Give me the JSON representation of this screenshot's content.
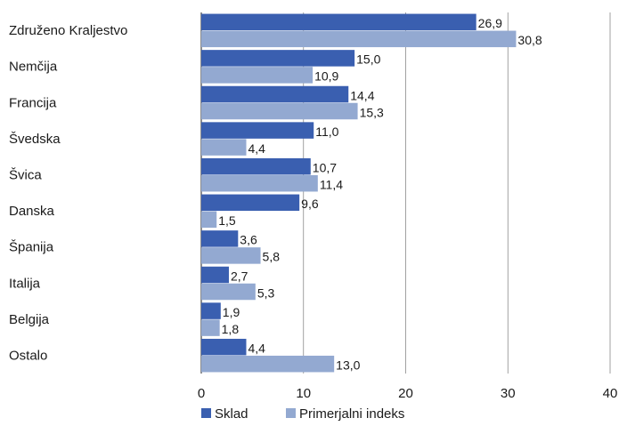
{
  "chart_data": {
    "type": "bar",
    "orientation": "horizontal",
    "title": "",
    "xlabel": "",
    "ylabel": "",
    "xlim": [
      0,
      40
    ],
    "ticks": [
      "0",
      "10",
      "20",
      "30",
      "40"
    ],
    "grid": "vertical",
    "legend_position": "bottom-left",
    "categories": [
      "Združeno Kraljestvo",
      "Nemčija",
      "Francija",
      "Švedska",
      "Švica",
      "Danska",
      "Španija",
      "Italija",
      "Belgija",
      "Ostalo"
    ],
    "series": [
      {
        "name": "Sklad",
        "color": "#3a5fb0",
        "values": [
          26.9,
          15.0,
          14.4,
          11.0,
          10.7,
          9.6,
          3.6,
          2.7,
          1.9,
          4.4
        ],
        "labels": [
          "26,9",
          "15,0",
          "14,4",
          "11,0",
          "10,7",
          "9,6",
          "3,6",
          "2,7",
          "1,9",
          "4,4"
        ]
      },
      {
        "name": "Primerjalni indeks",
        "color": "#93a9d1",
        "values": [
          30.8,
          10.9,
          15.3,
          4.4,
          11.4,
          1.5,
          5.8,
          5.3,
          1.8,
          13.0
        ],
        "labels": [
          "30,8",
          "10,9",
          "15,3",
          "4,4",
          "11,4",
          "1,5",
          "5,8",
          "5,3",
          "1,8",
          "13,0"
        ]
      }
    ]
  }
}
